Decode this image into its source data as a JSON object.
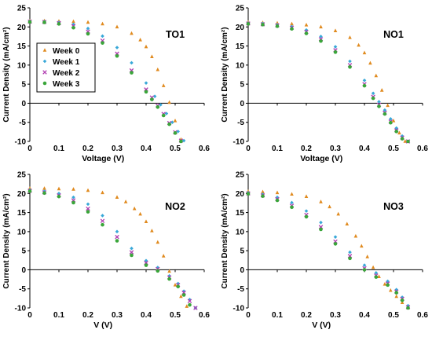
{
  "chart_data": [
    {
      "type": "line",
      "title": "TO1",
      "xlabel": "Voltage (V)",
      "ylabel": "Current Density  (mA/cm²)",
      "xlim": [
        0,
        0.6
      ],
      "ylim": [
        -10,
        25
      ],
      "xticks": [
        0,
        0.1,
        0.2,
        0.3,
        0.4,
        0.5,
        0.6
      ],
      "yticks": [
        -10,
        -5,
        0,
        5,
        10,
        15,
        20,
        25
      ],
      "legend": {
        "placement": "top-left-inside",
        "entries": [
          "Week 0",
          "Week 1",
          "Week 2",
          "Week 3"
        ]
      },
      "series": [
        {
          "name": "Week 0",
          "color": "#e08a1e",
          "marker": "triangle",
          "x": [
            0,
            0.05,
            0.1,
            0.15,
            0.2,
            0.25,
            0.3,
            0.35,
            0.38,
            0.4,
            0.42,
            0.44,
            0.46,
            0.48,
            0.5,
            0.52
          ],
          "y": [
            21.6,
            21.6,
            21.5,
            21.4,
            21.2,
            20.8,
            20.0,
            18.3,
            16.6,
            14.8,
            12.2,
            8.8,
            4.6,
            0.2,
            -4.6,
            -9.5
          ]
        },
        {
          "name": "Week 1",
          "color": "#38a8d8",
          "marker": "diamond",
          "x": [
            0,
            0.05,
            0.1,
            0.15,
            0.2,
            0.25,
            0.3,
            0.35,
            0.4,
            0.43,
            0.45,
            0.47,
            0.49,
            0.51,
            0.53
          ],
          "y": [
            21.5,
            21.4,
            21.2,
            20.7,
            19.6,
            17.6,
            14.6,
            10.6,
            5.3,
            1.8,
            -0.4,
            -2.7,
            -5.0,
            -7.4,
            -9.8
          ]
        },
        {
          "name": "Week 2",
          "color": "#b03cb0",
          "marker": "cross",
          "x": [
            0,
            0.05,
            0.1,
            0.15,
            0.2,
            0.25,
            0.3,
            0.35,
            0.4,
            0.42,
            0.44,
            0.46,
            0.48,
            0.5,
            0.52
          ],
          "y": [
            21.4,
            21.3,
            21.0,
            20.2,
            18.8,
            16.4,
            13.0,
            8.6,
            3.6,
            1.5,
            -0.6,
            -2.8,
            -5.2,
            -7.6,
            -9.8
          ]
        },
        {
          "name": "Week 3",
          "color": "#3aa63a",
          "marker": "circle",
          "x": [
            0,
            0.05,
            0.1,
            0.15,
            0.2,
            0.25,
            0.3,
            0.35,
            0.4,
            0.42,
            0.44,
            0.46,
            0.48,
            0.5,
            0.52
          ],
          "y": [
            21.3,
            21.2,
            20.8,
            19.8,
            18.2,
            15.8,
            12.4,
            8.0,
            3.0,
            1.0,
            -1.0,
            -3.2,
            -5.5,
            -7.8,
            -10.0
          ]
        }
      ]
    },
    {
      "type": "line",
      "title": "NO1",
      "xlabel": "Voltage (V)",
      "ylabel": "Current Density  (mA/cm²)",
      "xlim": [
        0,
        0.6
      ],
      "ylim": [
        -10,
        25
      ],
      "xticks": [
        0,
        0.1,
        0.2,
        0.3,
        0.4,
        0.5,
        0.6
      ],
      "yticks": [
        -10,
        -5,
        0,
        5,
        10,
        15,
        20,
        25
      ],
      "series": [
        {
          "name": "Week 0",
          "color": "#e08a1e",
          "marker": "triangle",
          "x": [
            0,
            0.05,
            0.1,
            0.15,
            0.2,
            0.25,
            0.3,
            0.35,
            0.38,
            0.4,
            0.42,
            0.44,
            0.46,
            0.48,
            0.5,
            0.52,
            0.54
          ],
          "y": [
            21.2,
            21.1,
            21.0,
            20.8,
            20.5,
            20.0,
            19.0,
            17.2,
            15.2,
            13.2,
            10.5,
            7.2,
            3.4,
            -0.6,
            -4.6,
            -7.8,
            -10.0
          ]
        },
        {
          "name": "Week 1",
          "color": "#38a8d8",
          "marker": "diamond",
          "x": [
            0,
            0.05,
            0.1,
            0.15,
            0.2,
            0.25,
            0.3,
            0.35,
            0.4,
            0.43,
            0.45,
            0.47,
            0.49,
            0.51,
            0.53,
            0.55
          ],
          "y": [
            21.0,
            20.9,
            20.6,
            20.1,
            19.2,
            17.5,
            14.8,
            11.0,
            6.0,
            2.6,
            0.4,
            -1.8,
            -4.1,
            -6.5,
            -8.6,
            -10.0
          ]
        },
        {
          "name": "Week 2",
          "color": "#b03cb0",
          "marker": "cross",
          "x": [
            0,
            0.05,
            0.1,
            0.15,
            0.2,
            0.25,
            0.3,
            0.35,
            0.4,
            0.43,
            0.45,
            0.47,
            0.49,
            0.51,
            0.53,
            0.55
          ],
          "y": [
            20.9,
            20.7,
            20.4,
            19.8,
            18.7,
            16.8,
            13.9,
            10.0,
            5.0,
            1.7,
            -0.4,
            -2.5,
            -4.8,
            -7.1,
            -9.0,
            -10.0
          ]
        },
        {
          "name": "Week 3",
          "color": "#3aa63a",
          "marker": "circle",
          "x": [
            0,
            0.05,
            0.1,
            0.15,
            0.2,
            0.25,
            0.3,
            0.35,
            0.4,
            0.43,
            0.45,
            0.47,
            0.49,
            0.51,
            0.53,
            0.55
          ],
          "y": [
            20.8,
            20.6,
            20.2,
            19.5,
            18.3,
            16.3,
            13.4,
            9.5,
            4.6,
            1.3,
            -0.8,
            -2.8,
            -5.1,
            -7.4,
            -9.3,
            -10.0
          ]
        }
      ]
    },
    {
      "type": "line",
      "title": "NO2",
      "xlabel": "V (V)",
      "ylabel": "Current Density  (mA/cm²)",
      "xlim": [
        0,
        0.6
      ],
      "ylim": [
        -10,
        25
      ],
      "xticks": [
        0,
        0.1,
        0.2,
        0.3,
        0.4,
        0.5,
        0.6
      ],
      "yticks": [
        -10,
        -5,
        0,
        5,
        10,
        15,
        20,
        25
      ],
      "series": [
        {
          "name": "Week 0",
          "color": "#e08a1e",
          "marker": "triangle",
          "x": [
            0,
            0.05,
            0.1,
            0.15,
            0.2,
            0.25,
            0.3,
            0.33,
            0.36,
            0.38,
            0.4,
            0.42,
            0.44,
            0.46,
            0.48,
            0.5,
            0.52,
            0.54
          ],
          "y": [
            21.3,
            21.3,
            21.2,
            21.1,
            20.8,
            20.2,
            19.0,
            17.8,
            16.0,
            14.6,
            12.6,
            10.2,
            7.2,
            3.6,
            -0.4,
            -4.0,
            -7.0,
            -9.6
          ]
        },
        {
          "name": "Week 1",
          "color": "#38a8d8",
          "marker": "diamond",
          "x": [
            0,
            0.05,
            0.1,
            0.15,
            0.2,
            0.25,
            0.3,
            0.35,
            0.4,
            0.44,
            0.48,
            0.51,
            0.53,
            0.55,
            0.57
          ],
          "y": [
            20.9,
            20.6,
            20.0,
            19.0,
            17.2,
            14.2,
            10.0,
            5.6,
            2.4,
            0.6,
            -1.6,
            -3.6,
            -5.6,
            -7.8,
            -10.0
          ]
        },
        {
          "name": "Week 2",
          "color": "#b03cb0",
          "marker": "cross",
          "x": [
            0,
            0.05,
            0.1,
            0.15,
            0.2,
            0.25,
            0.3,
            0.35,
            0.4,
            0.44,
            0.48,
            0.51,
            0.53,
            0.55,
            0.57
          ],
          "y": [
            20.7,
            20.3,
            19.5,
            18.2,
            16.0,
            12.8,
            8.6,
            4.6,
            1.8,
            0.2,
            -2.0,
            -4.0,
            -6.0,
            -8.2,
            -10.0
          ]
        },
        {
          "name": "Week 3",
          "color": "#3aa63a",
          "marker": "circle",
          "x": [
            0,
            0.05,
            0.1,
            0.15,
            0.2,
            0.25,
            0.3,
            0.35,
            0.4,
            0.44,
            0.48,
            0.51,
            0.53,
            0.55
          ],
          "y": [
            20.6,
            20.1,
            19.2,
            17.6,
            15.2,
            11.8,
            7.6,
            3.8,
            1.2,
            -0.3,
            -2.4,
            -4.4,
            -6.6,
            -9.2
          ]
        }
      ]
    },
    {
      "type": "line",
      "title": "NO3",
      "xlabel": "V (V)",
      "ylabel": "Current Density  (mA/cm²)",
      "xlim": [
        0,
        0.6
      ],
      "ylim": [
        -10,
        25
      ],
      "xticks": [
        0,
        0.1,
        0.2,
        0.3,
        0.4,
        0.5,
        0.6
      ],
      "yticks": [
        -10,
        -5,
        0,
        5,
        10,
        15,
        20,
        25
      ],
      "series": [
        {
          "name": "Week 0",
          "color": "#e08a1e",
          "marker": "triangle",
          "x": [
            0,
            0.05,
            0.1,
            0.15,
            0.2,
            0.25,
            0.28,
            0.31,
            0.34,
            0.37,
            0.39,
            0.41,
            0.43,
            0.45,
            0.47,
            0.49,
            0.51,
            0.53,
            0.55
          ],
          "y": [
            20.5,
            20.4,
            20.2,
            19.8,
            19.2,
            17.8,
            16.5,
            14.6,
            12.0,
            8.8,
            6.2,
            3.4,
            0.6,
            -1.8,
            -3.8,
            -5.4,
            -7.0,
            -8.6,
            -10.0
          ]
        },
        {
          "name": "Week 1",
          "color": "#38a8d8",
          "marker": "diamond",
          "x": [
            0,
            0.05,
            0.1,
            0.15,
            0.2,
            0.25,
            0.3,
            0.35,
            0.4,
            0.44,
            0.48,
            0.51,
            0.53,
            0.55
          ],
          "y": [
            20.2,
            19.8,
            19.0,
            17.6,
            15.4,
            12.4,
            8.6,
            4.6,
            1.2,
            -0.8,
            -3.0,
            -5.2,
            -7.2,
            -9.4
          ]
        },
        {
          "name": "Week 2",
          "color": "#b03cb0",
          "marker": "cross",
          "x": [
            0,
            0.05,
            0.1,
            0.15,
            0.2,
            0.25,
            0.3,
            0.35,
            0.4,
            0.44,
            0.48,
            0.51,
            0.53,
            0.55
          ],
          "y": [
            20.0,
            19.5,
            18.5,
            16.8,
            14.4,
            11.2,
            7.4,
            3.6,
            0.4,
            -1.5,
            -3.6,
            -5.7,
            -7.6,
            -9.8
          ]
        },
        {
          "name": "Week 3",
          "color": "#3aa63a",
          "marker": "circle",
          "x": [
            0,
            0.05,
            0.1,
            0.15,
            0.2,
            0.25,
            0.3,
            0.35,
            0.4,
            0.44,
            0.48,
            0.51,
            0.53,
            0.55
          ],
          "y": [
            19.9,
            19.3,
            18.2,
            16.4,
            13.9,
            10.6,
            6.8,
            3.0,
            0.0,
            -1.9,
            -4.0,
            -6.0,
            -8.0,
            -10.0
          ]
        }
      ]
    }
  ]
}
